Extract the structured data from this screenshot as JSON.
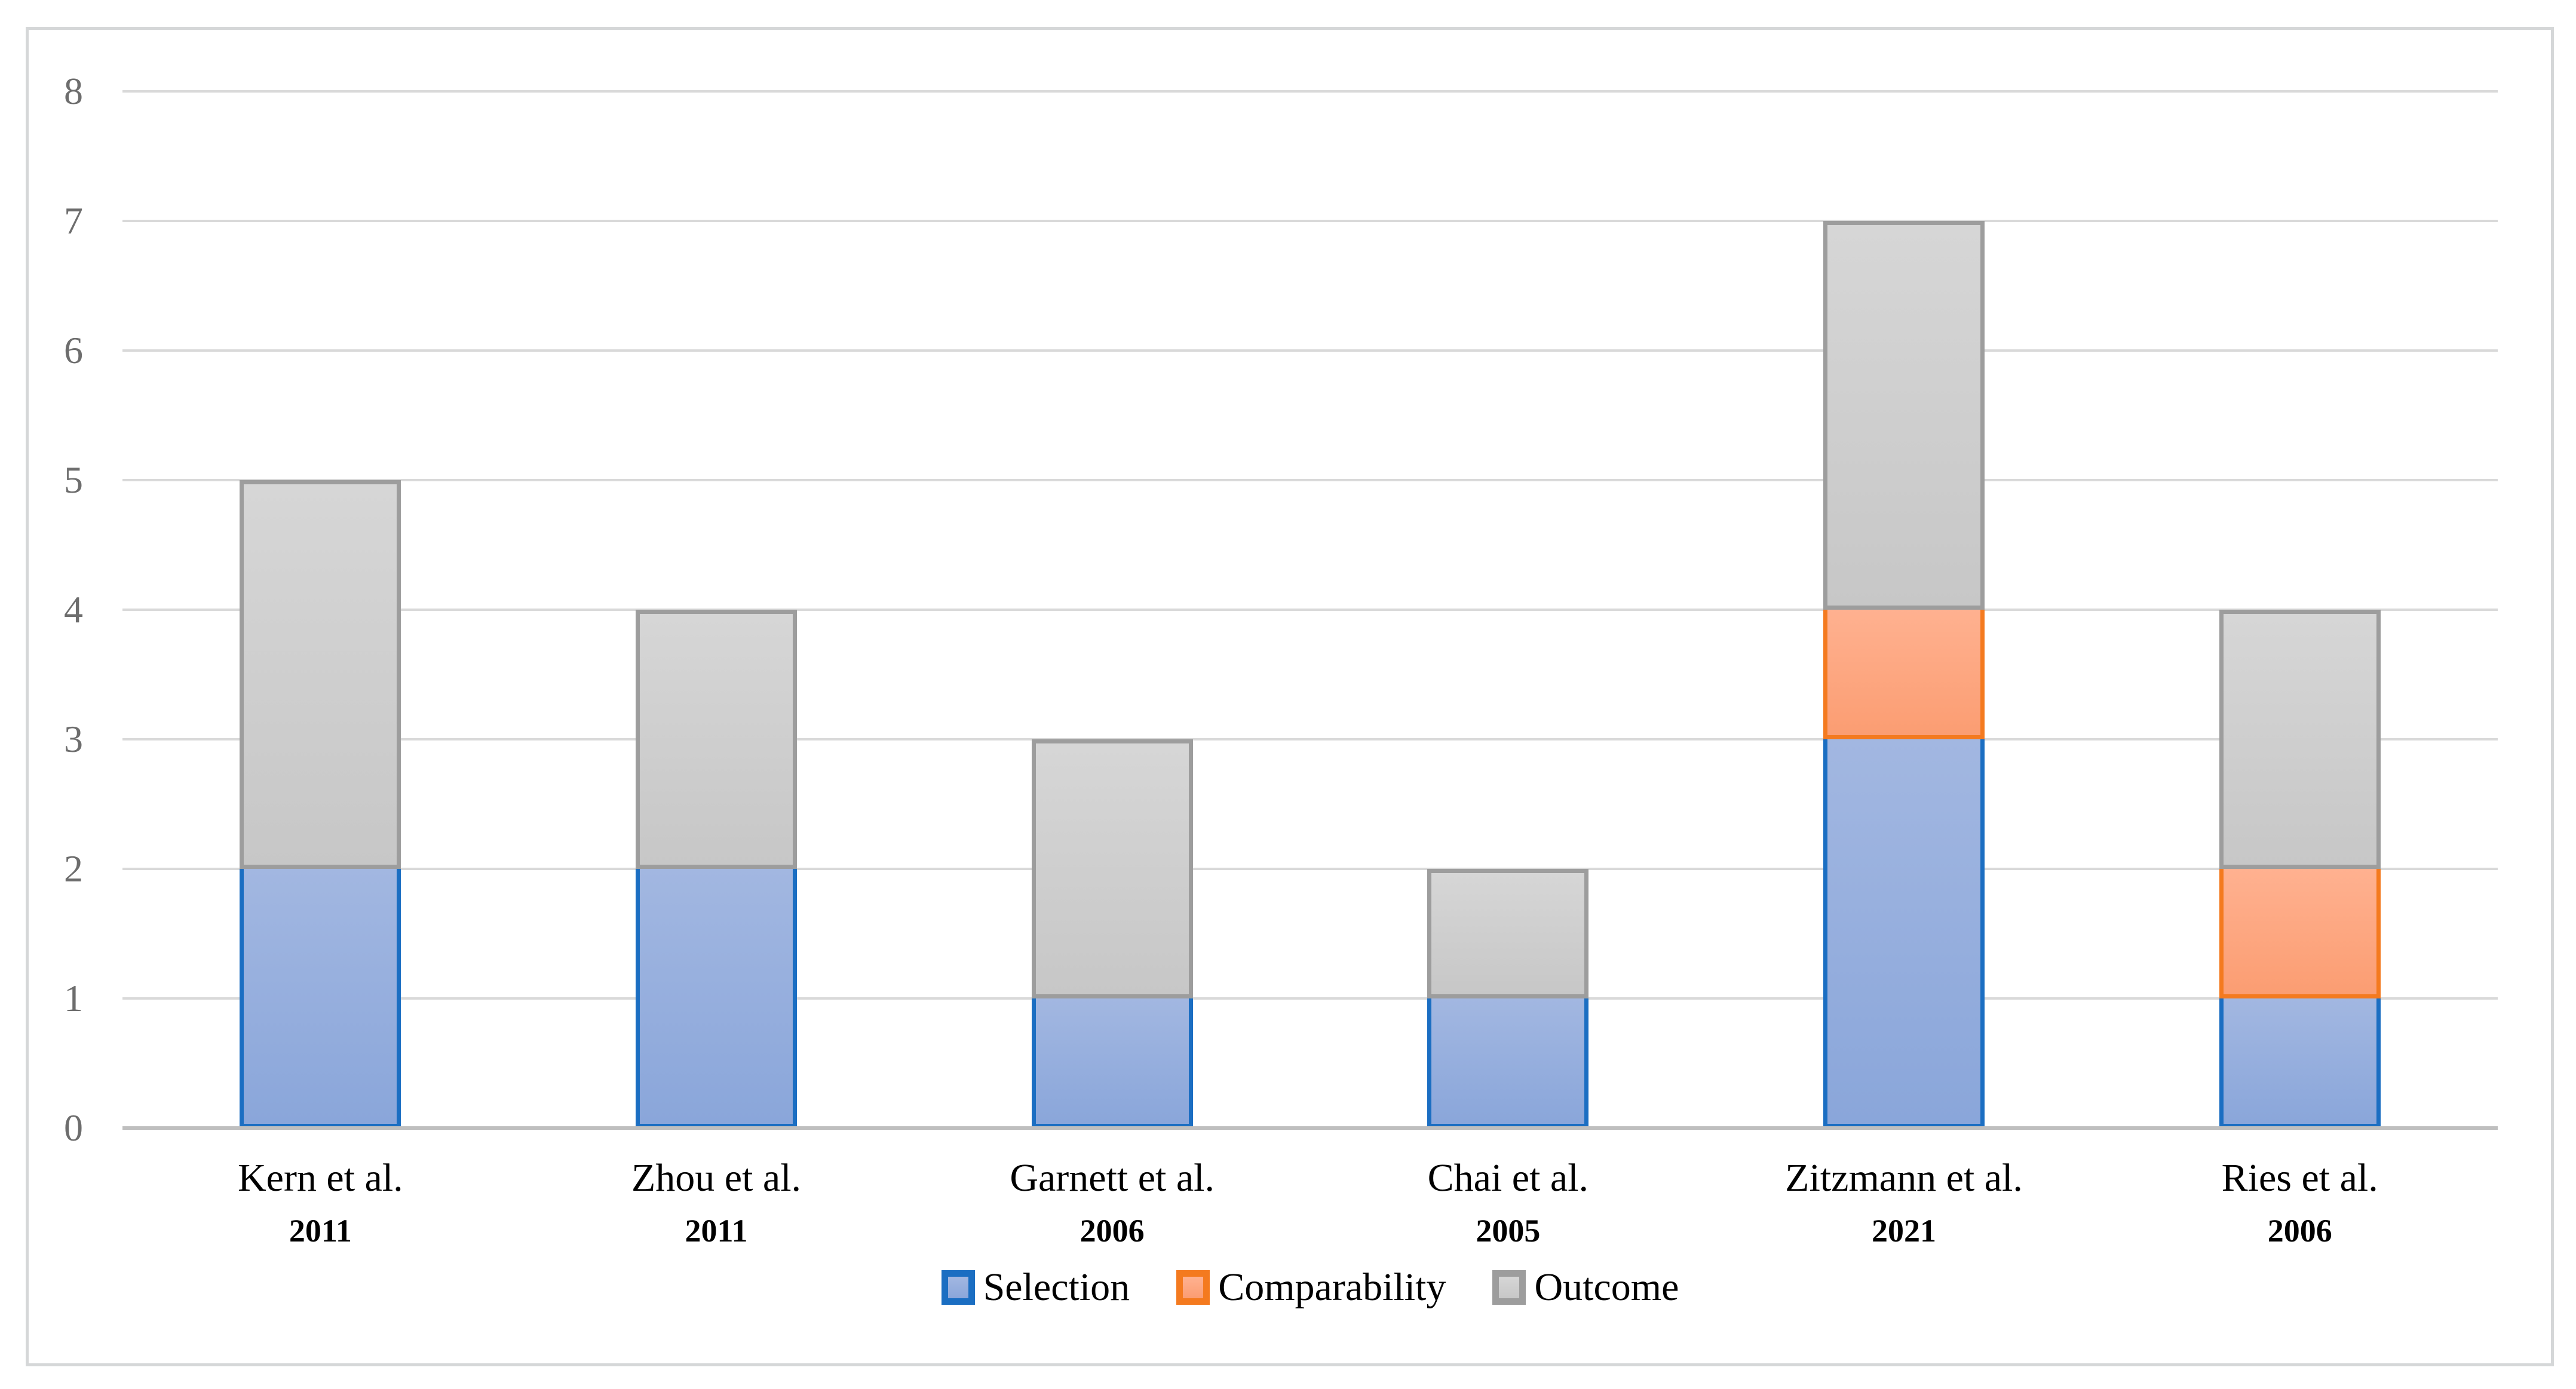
{
  "chart_data": {
    "type": "bar",
    "stacked": true,
    "title": "",
    "xlabel": "",
    "ylabel": "",
    "categories": [
      {
        "label": "Kern et al.",
        "year": "2011"
      },
      {
        "label": "Zhou et al.",
        "year": "2011"
      },
      {
        "label": "Garnett et al.",
        "year": "2006"
      },
      {
        "label": "Chai et al.",
        "year": "2005"
      },
      {
        "label": "Zitzmann et al.",
        "year": "2021"
      },
      {
        "label": "Ries et al.",
        "year": "2006"
      }
    ],
    "series": [
      {
        "name": "Selection",
        "values": [
          2,
          2,
          1,
          1,
          3,
          1
        ],
        "fill_top": "#a2b7e1",
        "fill_bottom": "#8aa6da",
        "border": "#1b6ec2"
      },
      {
        "name": "Comparability",
        "values": [
          0,
          0,
          0,
          0,
          1,
          1
        ],
        "fill_top": "#ffb190",
        "fill_bottom": "#fb9d72",
        "border": "#f47a1f"
      },
      {
        "name": "Outcome",
        "values": [
          3,
          2,
          2,
          1,
          3,
          2
        ],
        "fill_top": "#d6d6d6",
        "fill_bottom": "#c7c7c7",
        "border": "#9d9d9d"
      }
    ],
    "totals": [
      5,
      4,
      3,
      2,
      7,
      4
    ],
    "y_axis": {
      "min": 0,
      "max": 8,
      "tick_step": 1,
      "ticks": [
        0,
        1,
        2,
        3,
        4,
        5,
        6,
        7,
        8
      ]
    },
    "grid": true,
    "legend_position": "bottom",
    "colors": {
      "gridline": "#d9d9d9",
      "axis_line": "#bfbfbf",
      "tick_label": "#6d6d6d",
      "category_label": "#000000",
      "frame_border": "#d5d7d8",
      "background": "#ffffff"
    }
  }
}
